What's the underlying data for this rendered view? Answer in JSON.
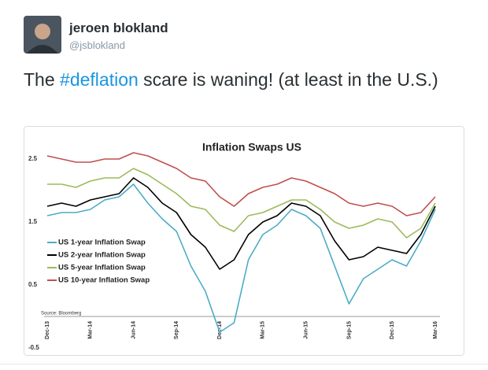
{
  "tweet": {
    "name": "jeroen blokland",
    "handle": "@jsblokland",
    "text": [
      "The ",
      "#deflation",
      " scare is waning! (at least in the U.S.)"
    ]
  },
  "chart_data": {
    "type": "line",
    "title": "Inflation Swaps US",
    "source": "Source: Bloomberg",
    "categories": [
      "Dec-13",
      null,
      null,
      "Mar-14",
      null,
      null,
      "Jun-14",
      null,
      null,
      "Sep-14",
      null,
      null,
      "Dec-14",
      null,
      null,
      "Mar-15",
      null,
      null,
      "Jun-15",
      null,
      null,
      "Sep-15",
      null,
      null,
      "Dec-15",
      null,
      null,
      "Mar-16"
    ],
    "series": [
      {
        "name": "US 1-year Inflation Swap",
        "color": "#4bacc6",
        "values": [
          1.6,
          1.65,
          1.65,
          1.7,
          1.85,
          1.9,
          2.1,
          1.8,
          1.55,
          1.35,
          0.8,
          0.4,
          -0.25,
          -0.1,
          0.9,
          1.3,
          1.45,
          1.7,
          1.6,
          1.4,
          0.8,
          0.2,
          0.6,
          0.75,
          0.9,
          0.8,
          1.2,
          1.7
        ]
      },
      {
        "name": "US 2-year Inflation Swap",
        "color": "#000000",
        "values": [
          1.75,
          1.8,
          1.75,
          1.85,
          1.9,
          1.95,
          2.2,
          2.05,
          1.8,
          1.65,
          1.3,
          1.1,
          0.75,
          0.9,
          1.3,
          1.5,
          1.6,
          1.8,
          1.75,
          1.6,
          1.2,
          0.9,
          0.95,
          1.1,
          1.05,
          1.0,
          1.3,
          1.75
        ]
      },
      {
        "name": "US 5-year Inflation Swap",
        "color": "#9bbb59",
        "values": [
          2.1,
          2.1,
          2.05,
          2.15,
          2.2,
          2.2,
          2.35,
          2.25,
          2.1,
          1.95,
          1.75,
          1.7,
          1.45,
          1.35,
          1.6,
          1.65,
          1.75,
          1.85,
          1.85,
          1.7,
          1.5,
          1.4,
          1.45,
          1.55,
          1.5,
          1.25,
          1.4,
          1.8
        ]
      },
      {
        "name": "US 10-year Inflation Swap",
        "color": "#c0504d",
        "values": [
          2.55,
          2.5,
          2.45,
          2.45,
          2.5,
          2.5,
          2.6,
          2.55,
          2.45,
          2.35,
          2.2,
          2.15,
          1.9,
          1.75,
          1.95,
          2.05,
          2.1,
          2.2,
          2.15,
          2.05,
          1.95,
          1.8,
          1.75,
          1.8,
          1.75,
          1.6,
          1.65,
          1.9
        ]
      }
    ],
    "ylim": [
      -0.5,
      2.8
    ],
    "yticks": [
      -0.5,
      0.5,
      1.5,
      2.5
    ],
    "grid": false,
    "legend": "lower-left"
  }
}
